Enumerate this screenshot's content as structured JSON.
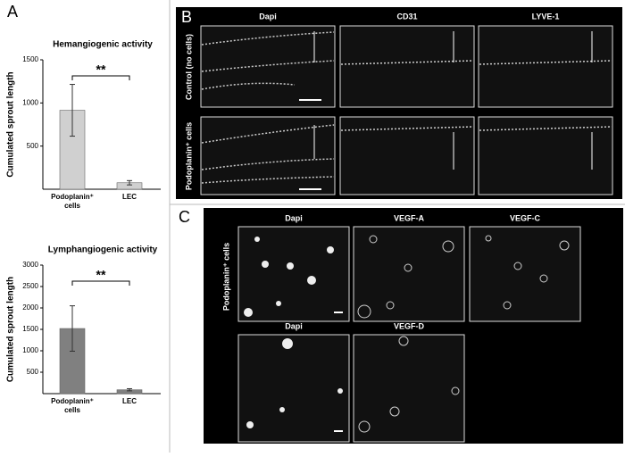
{
  "chart_data": [
    {
      "type": "bar",
      "title": "Hemangiogenic activity",
      "y_label": "Cumulated sprout length",
      "categories": [
        "Podoplanin⁺ cells",
        "LEC"
      ],
      "values": [
        915,
        75
      ],
      "errors": [
        300,
        25
      ],
      "color": "#d0d0d0",
      "ylim": [
        0,
        1500
      ],
      "yticks": [
        500,
        1000,
        1500
      ],
      "annotation": "**"
    },
    {
      "type": "bar",
      "title": "Lymphangiogenic activity",
      "y_label": "Cumulated sprout length",
      "categories": [
        "Podoplanin⁺ cells",
        "LEC"
      ],
      "values": [
        1520,
        90
      ],
      "errors": [
        530,
        25
      ],
      "color": "#808080",
      "ylim": [
        0,
        3000
      ],
      "yticks": [
        500,
        1000,
        1500,
        2000,
        2500,
        3000
      ],
      "annotation": "**"
    }
  ],
  "figure": {
    "panel_labels": [
      "A",
      "B",
      "C"
    ],
    "b_columns": [
      "Dapi",
      "CD31",
      "LYVE-1"
    ],
    "b_rows": [
      "Control (no cells)",
      "Podoplanin⁺ cells"
    ],
    "c_titles": [
      "Dapi",
      "VEGF-A",
      "VEGF-C",
      "Dapi",
      "VEGF-D"
    ],
    "c_row_label": "Podoplanin⁺ cells"
  }
}
